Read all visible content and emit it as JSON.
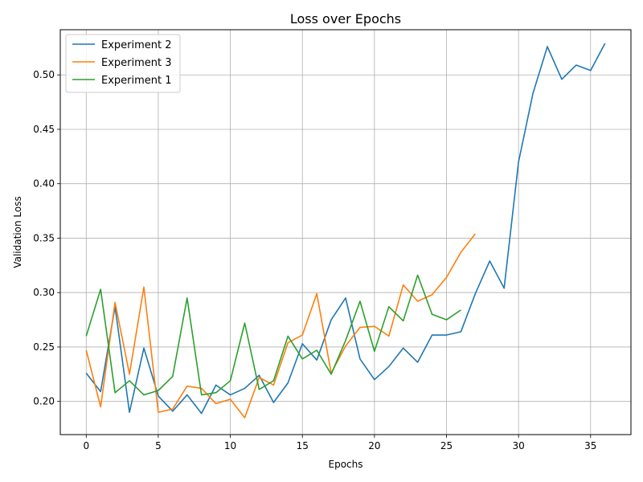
{
  "chart_data": {
    "type": "line",
    "title": "Loss over Epochs",
    "xlabel": "Epochs",
    "ylabel": "Validation Loss",
    "xlim": [
      -1.8,
      37.8
    ],
    "ylim": [
      0.1695,
      0.5415
    ],
    "xticks": [
      0,
      5,
      10,
      15,
      20,
      25,
      30,
      35
    ],
    "yticks": [
      0.2,
      0.25,
      0.3,
      0.35,
      0.4,
      0.45,
      0.5
    ],
    "xtick_labels": [
      "0",
      "5",
      "10",
      "15",
      "20",
      "25",
      "30",
      "35"
    ],
    "ytick_labels": [
      "0.20",
      "0.25",
      "0.30",
      "0.35",
      "0.40",
      "0.45",
      "0.50"
    ],
    "grid": true,
    "legend_position": "top-left",
    "series": [
      {
        "name": "Experiment 2",
        "color": "#1f77b4",
        "x": [
          0,
          1,
          2,
          3,
          4,
          5,
          6,
          7,
          8,
          9,
          10,
          11,
          12,
          13,
          14,
          15,
          16,
          17,
          18,
          19,
          20,
          21,
          22,
          23,
          24,
          25,
          26,
          27,
          28,
          29,
          30,
          31,
          32,
          33,
          34,
          35,
          36
        ],
        "values": [
          0.226,
          0.209,
          0.287,
          0.19,
          0.249,
          0.205,
          0.191,
          0.206,
          0.189,
          0.215,
          0.206,
          0.212,
          0.224,
          0.199,
          0.217,
          0.253,
          0.238,
          0.275,
          0.295,
          0.239,
          0.22,
          0.232,
          0.249,
          0.236,
          0.261,
          0.261,
          0.264,
          0.299,
          0.329,
          0.304,
          0.42,
          0.483,
          0.526,
          0.496,
          0.509,
          0.504,
          0.529
        ]
      },
      {
        "name": "Experiment 3",
        "color": "#ff7f0e",
        "x": [
          0,
          1,
          2,
          3,
          4,
          5,
          6,
          7,
          8,
          9,
          10,
          11,
          12,
          13,
          14,
          15,
          16,
          17,
          18,
          19,
          20,
          21,
          22,
          23,
          24,
          25,
          26,
          27
        ],
        "values": [
          0.247,
          0.195,
          0.291,
          0.225,
          0.305,
          0.19,
          0.193,
          0.214,
          0.212,
          0.198,
          0.202,
          0.185,
          0.222,
          0.215,
          0.254,
          0.261,
          0.299,
          0.226,
          0.251,
          0.268,
          0.269,
          0.26,
          0.307,
          0.292,
          0.298,
          0.314,
          0.337,
          0.354
        ]
      },
      {
        "name": "Experiment 1",
        "color": "#2ca02c",
        "x": [
          0,
          1,
          2,
          3,
          4,
          5,
          6,
          7,
          8,
          9,
          10,
          11,
          12,
          13,
          14,
          15,
          16,
          17,
          18,
          19,
          20,
          21,
          22,
          23,
          24,
          25,
          26
        ],
        "values": [
          0.26,
          0.303,
          0.208,
          0.219,
          0.206,
          0.21,
          0.223,
          0.295,
          0.206,
          0.208,
          0.219,
          0.272,
          0.211,
          0.219,
          0.26,
          0.239,
          0.247,
          0.225,
          0.256,
          0.292,
          0.246,
          0.287,
          0.274,
          0.316,
          0.28,
          0.275,
          0.284
        ]
      }
    ]
  }
}
